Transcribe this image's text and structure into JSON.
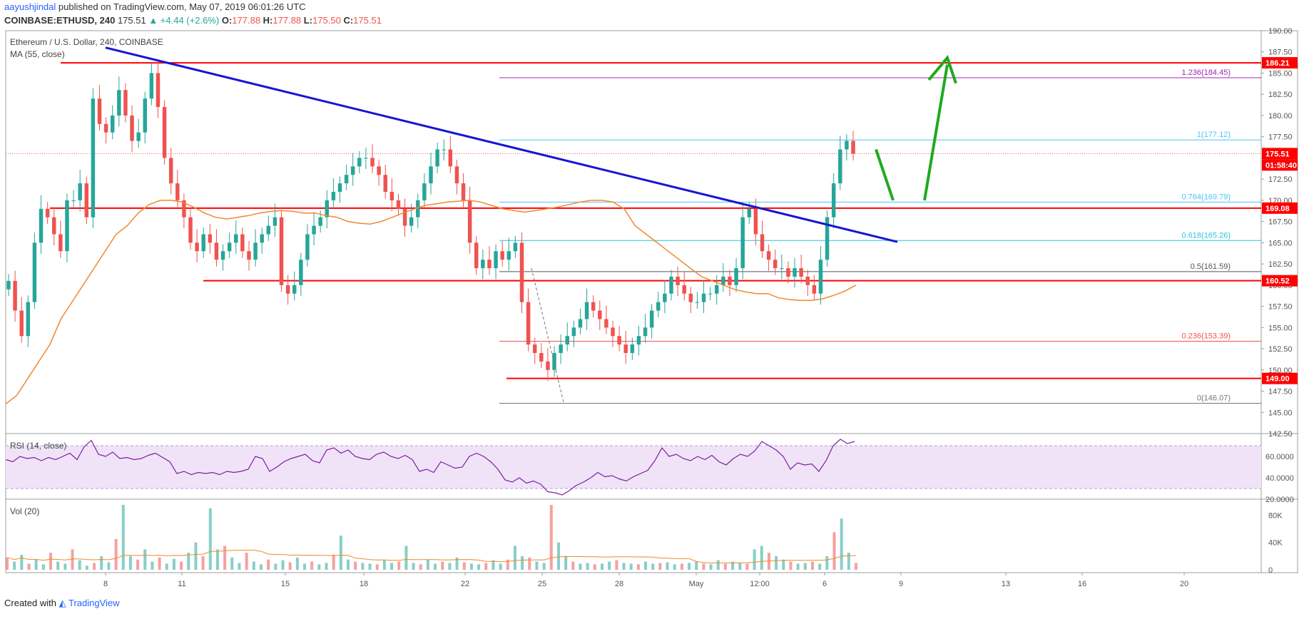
{
  "header": {
    "author": "aayushjindal",
    "published": "published on TradingView.com, May 07, 2019 06:01:26 UTC",
    "symbol": "COINBASE:ETHUSD, 240",
    "last": "175.51",
    "change": "▲ +4.44 (+2.6%)",
    "o_label": "O:",
    "o": "177.88",
    "h_label": "H:",
    "h": "177.88",
    "l_label": "L:",
    "l": "175.50",
    "c_label": "C:",
    "c": "175.51"
  },
  "legend": {
    "title": "Ethereum / U.S. Dollar, 240, COINBASE",
    "ma": "MA (55, close)",
    "rsi": "RSI (14, close)",
    "vol": "Vol (20)"
  },
  "footer": {
    "created": "Created with",
    "brand": "TradingView"
  },
  "colors": {
    "up": "#26a69a",
    "down": "#ef5350",
    "level": "#ff0000",
    "trend": "#1515d4",
    "ma": "#f0892f",
    "fib_purple": "#9c27b0",
    "fib_blue": "#4fc3f7",
    "fib_teal": "#26c6da",
    "arrow": "#1faa1f",
    "rsi": "#7b1fa2",
    "rsi_band": "#f1e3f7",
    "vol_ma": "#f0892f"
  },
  "chart_data": [
    {
      "type": "candlestick",
      "title": "Ethereum / U.S. Dollar, 240, COINBASE",
      "y_ticks": [
        "190.00",
        "187.50",
        "185.00",
        "182.50",
        "180.00",
        "177.50",
        "175.00",
        "172.50",
        "170.00",
        "167.50",
        "165.00",
        "162.50",
        "160.00",
        "157.50",
        "155.00",
        "152.50",
        "150.00",
        "147.50",
        "145.00",
        "142.50"
      ],
      "ylim": [
        142.5,
        190
      ],
      "x_ticks": [
        "8",
        "11",
        "15",
        "18",
        "22",
        "25",
        "28",
        "May",
        "12:00",
        "6",
        "9",
        "13",
        "16",
        "20"
      ],
      "price_labels": [
        {
          "text": "186.21",
          "kind": "level"
        },
        {
          "text": "175.51",
          "kind": "last"
        },
        {
          "text": "01:58:40",
          "kind": "countdown"
        },
        {
          "text": "169.08",
          "kind": "level"
        },
        {
          "text": "160.52",
          "kind": "level"
        },
        {
          "text": "149.00",
          "kind": "level"
        }
      ],
      "horizontal_levels": [
        186.21,
        169.08,
        160.52,
        149.0
      ],
      "fibonacci": [
        {
          "label": "1.236(184.45)",
          "value": 184.45
        },
        {
          "label": "1(177.12)",
          "value": 177.12
        },
        {
          "label": "0.764(169.79)",
          "value": 169.79
        },
        {
          "label": "0.618(165.26)",
          "value": 165.26
        },
        {
          "label": "0.5(161.59)",
          "value": 161.59
        },
        {
          "label": "0.236(153.39)",
          "value": 153.39
        },
        {
          "label": "0(146.07)",
          "value": 146.07
        }
      ],
      "close_path": [
        160.5,
        157,
        154,
        158,
        165,
        169,
        168,
        166,
        164,
        170,
        170,
        172,
        168,
        182,
        179,
        178,
        180,
        183,
        180,
        177,
        178,
        182,
        185,
        181,
        175,
        172,
        170,
        168,
        165,
        164,
        166,
        165,
        163,
        164,
        165,
        166,
        164,
        163,
        165,
        166,
        167,
        168,
        160,
        159,
        160,
        163,
        166,
        167,
        168,
        170,
        171,
        172,
        173,
        174,
        175,
        175,
        174,
        173,
        171,
        170,
        169,
        167,
        168,
        170,
        172,
        174,
        176,
        176,
        174,
        172,
        170,
        165,
        162,
        163,
        162,
        164,
        163,
        164,
        165,
        158,
        153,
        152,
        151,
        150,
        152,
        153,
        154,
        155,
        156,
        158,
        157,
        156,
        155,
        154,
        153,
        152,
        153,
        154,
        155,
        157,
        158,
        159,
        161,
        160,
        159,
        158,
        158,
        159,
        159,
        160,
        161,
        160,
        162,
        168,
        169,
        166,
        164,
        163,
        162,
        162,
        161,
        162,
        161,
        160,
        159,
        163,
        168,
        172,
        176,
        177,
        175.5
      ],
      "ma55_path": [
        146,
        147,
        149,
        151,
        153,
        156,
        158,
        160,
        162,
        164,
        166,
        167,
        168.5,
        169.5,
        170,
        170,
        169.8,
        169.2,
        168.5,
        168,
        167.8,
        168,
        168.2,
        168.5,
        168.7,
        168.8,
        168.7,
        168.5,
        168.5,
        168.2,
        168,
        167.5,
        167.3,
        167.2,
        167.5,
        168,
        168.5,
        169,
        169.4,
        169.6,
        169.8,
        169.9,
        170,
        169.8,
        169.4,
        169,
        168.8,
        168.6,
        168.8,
        169,
        169.2,
        169.5,
        169.8,
        170,
        170,
        169.8,
        169,
        167,
        166,
        165,
        164,
        163,
        162,
        161,
        160.5,
        160,
        159.5,
        159.2,
        159,
        159,
        158.5,
        158.3,
        158.2,
        158.2,
        158.4,
        158.8,
        159.3,
        160
      ],
      "annotations": [
        "descending trend line",
        "green arrow down to 169.79 then up to 186.21"
      ]
    },
    {
      "type": "line",
      "title": "RSI (14, close)",
      "y_ticks": [
        "60.0000",
        "40.0000",
        "20.0000"
      ],
      "ylim": [
        20,
        80
      ],
      "band": [
        30,
        70
      ],
      "values": [
        57,
        55,
        60,
        58,
        59,
        56,
        59,
        57,
        60,
        63,
        57,
        69,
        75,
        62,
        60,
        64,
        58,
        59,
        57,
        58,
        61,
        63,
        59,
        55,
        44,
        46,
        43,
        45,
        44,
        45,
        43,
        46,
        45,
        46,
        48,
        60,
        58,
        46,
        50,
        55,
        58,
        60,
        62,
        56,
        54,
        66,
        68,
        63,
        66,
        60,
        58,
        57,
        62,
        64,
        60,
        58,
        61,
        57,
        46,
        48,
        45,
        55,
        52,
        49,
        50,
        60,
        63,
        60,
        55,
        48,
        38,
        36,
        40,
        35,
        37,
        34,
        27,
        26,
        24,
        28,
        33,
        36,
        40,
        45,
        41,
        42,
        39,
        37,
        41,
        44,
        47,
        56,
        68,
        60,
        62,
        58,
        56,
        60,
        57,
        61,
        55,
        52,
        58,
        62,
        60,
        65,
        74,
        70,
        66,
        60,
        48,
        54,
        52,
        53,
        46,
        56,
        70,
        76,
        72,
        74
      ]
    },
    {
      "type": "bar",
      "title": "Vol (20)",
      "y_ticks": [
        "80K",
        "40K",
        "0"
      ],
      "ylim": [
        0,
        95000
      ],
      "values": [
        18000,
        12000,
        22000,
        9000,
        15000,
        8000,
        25000,
        12000,
        9000,
        30000,
        14000,
        6000,
        10000,
        20000,
        11000,
        45000,
        95000,
        20000,
        15000,
        30000,
        12000,
        18000,
        9000,
        16000,
        12000,
        25000,
        40000,
        20000,
        90000,
        30000,
        35000,
        18000,
        10000,
        25000,
        12000,
        8000,
        15000,
        9000,
        14000,
        11000,
        18000,
        9000,
        12000,
        8000,
        10000,
        22000,
        50000,
        15000,
        12000,
        10000,
        9000,
        8000,
        14000,
        10000,
        12000,
        35000,
        10000,
        8000,
        15000,
        9000,
        12000,
        10000,
        18000,
        11000,
        9000,
        8000,
        10000,
        14000,
        9000,
        15000,
        35000,
        20000,
        18000,
        12000,
        10000,
        95000,
        40000,
        20000,
        12000,
        9000,
        10000,
        8000,
        9000,
        12000,
        14000,
        10000,
        9000,
        8000,
        12000,
        9000,
        10000,
        11000,
        8000,
        9000,
        10000,
        12000,
        9000,
        8000,
        14000,
        9000,
        12000,
        10000,
        9000,
        30000,
        35000,
        25000,
        20000,
        15000,
        12000,
        9000,
        10000,
        12000,
        9000,
        20000,
        55000,
        75000,
        25000,
        10000
      ]
    }
  ]
}
